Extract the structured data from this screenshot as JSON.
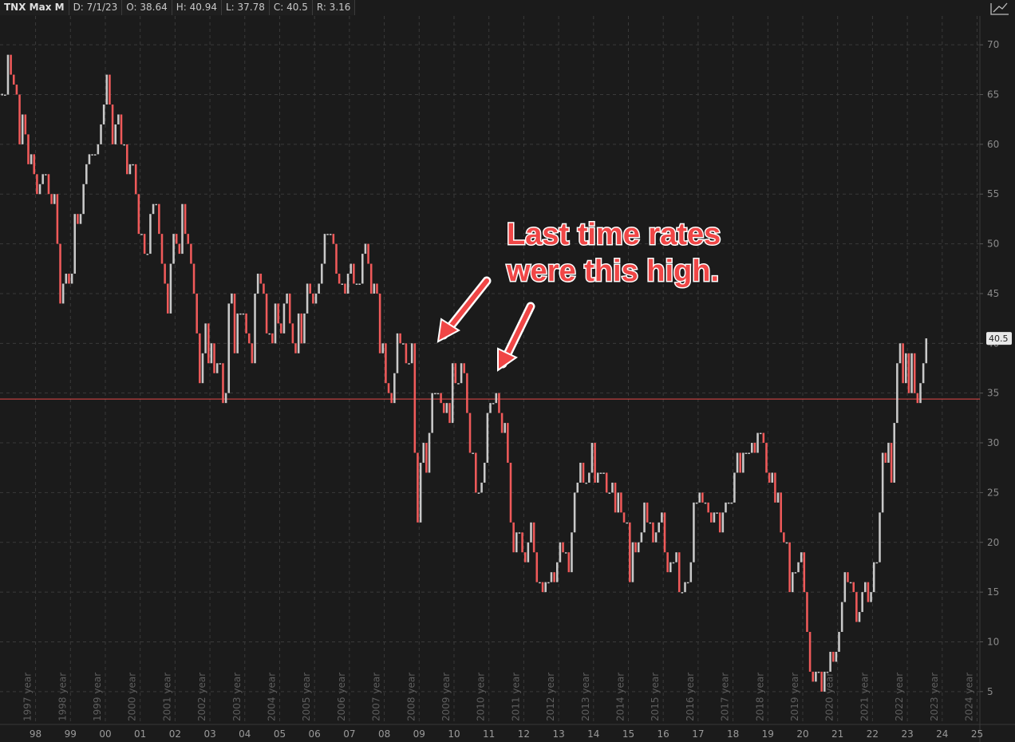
{
  "chart_data": {
    "type": "candlestick",
    "header": [
      "TNX Max M",
      "D: 7/1/23",
      "O: 38.64",
      "H: 40.94",
      "L: 37.78",
      "C: 40.5",
      "R: 3.16"
    ],
    "annotation": [
      "Last time rates",
      "were this high."
    ],
    "up_color": "#c9c9c9",
    "down_color": "#f05a5a",
    "hline": 34.4,
    "hline_color": "#e84a4a",
    "grid": true,
    "ylim": [
      1.7,
      72.9
    ],
    "yticks": [
      5,
      10,
      15,
      20,
      25,
      30,
      35,
      40,
      45,
      50,
      55,
      60,
      65,
      70
    ],
    "xlim": [
      1996.98,
      2025.08
    ],
    "xticks": [
      {
        "value": 1998,
        "label": "98"
      },
      {
        "value": 1999,
        "label": "99"
      },
      {
        "value": 2000,
        "label": "00"
      },
      {
        "value": 2001,
        "label": "01"
      },
      {
        "value": 2002,
        "label": "02"
      },
      {
        "value": 2003,
        "label": "03"
      },
      {
        "value": 2004,
        "label": "04"
      },
      {
        "value": 2005,
        "label": "05"
      },
      {
        "value": 2006,
        "label": "06"
      },
      {
        "value": 2007,
        "label": "07"
      },
      {
        "value": 2008,
        "label": "08"
      },
      {
        "value": 2009,
        "label": "09"
      },
      {
        "value": 2010,
        "label": "10"
      },
      {
        "value": 2011,
        "label": "11"
      },
      {
        "value": 2012,
        "label": "12"
      },
      {
        "value": 2013,
        "label": "13"
      },
      {
        "value": 2014,
        "label": "14"
      },
      {
        "value": 2015,
        "label": "15"
      },
      {
        "value": 2016,
        "label": "16"
      },
      {
        "value": 2017,
        "label": "17"
      },
      {
        "value": 2018,
        "label": "18"
      },
      {
        "value": 2019,
        "label": "19"
      },
      {
        "value": 2020,
        "label": "20"
      },
      {
        "value": 2021,
        "label": "21"
      },
      {
        "value": 2022,
        "label": "22"
      },
      {
        "value": 2023,
        "label": "23"
      },
      {
        "value": 2024,
        "label": "24"
      },
      {
        "value": 2025,
        "label": "25"
      }
    ],
    "year_labels": [
      "1997 year",
      "1998 year",
      "1999 year",
      "2000 year",
      "2001 year",
      "2002 year",
      "2003 year",
      "2004 year",
      "2005 year",
      "2006 year",
      "2007 year",
      "2008 year",
      "2009 year",
      "2010 year",
      "2011 year",
      "2012 year",
      "2013 year",
      "2014 year",
      "2015 year",
      "2016 year",
      "2017 year",
      "2018 year",
      "2019 year",
      "2020 year",
      "2021 year",
      "2022 year",
      "2023 year",
      "2024 year"
    ],
    "series": [
      {
        "name": "TNX",
        "values": [
          65,
          65,
          69,
          67,
          66,
          65,
          60,
          63,
          61,
          58,
          59,
          57,
          55,
          56,
          57,
          57,
          55,
          54,
          55,
          50,
          44,
          46,
          47,
          46,
          47,
          53,
          52,
          53,
          56,
          58,
          59,
          59,
          59,
          60,
          62,
          64,
          67,
          64,
          60,
          62,
          63,
          60,
          60,
          57,
          58,
          58,
          55,
          51,
          51,
          49,
          49,
          53,
          54,
          54,
          51,
          48,
          46,
          43,
          48,
          51,
          50,
          49,
          54,
          51,
          50,
          48,
          45,
          41,
          36,
          39,
          42,
          38,
          40,
          37,
          38,
          38,
          34,
          35,
          44,
          45,
          39,
          43,
          43,
          43,
          41,
          40,
          38,
          45,
          47,
          46,
          45,
          41,
          41,
          40,
          44,
          42,
          41,
          44,
          45,
          42,
          40,
          39,
          43,
          40,
          43,
          46,
          45,
          44,
          45,
          46,
          48,
          51,
          51,
          51,
          50,
          47,
          46,
          46,
          45,
          47,
          48,
          46,
          46,
          46,
          49,
          50,
          48,
          45,
          46,
          45,
          39,
          40,
          36,
          35,
          34,
          37,
          41,
          40,
          40,
          38,
          38,
          40,
          29,
          22,
          28,
          30,
          27,
          31,
          35,
          35,
          35,
          34,
          33,
          34,
          32,
          38,
          36,
          36,
          38,
          37,
          33,
          29,
          29,
          25,
          25,
          26,
          28,
          33,
          34,
          34,
          35,
          33,
          31,
          32,
          28,
          22,
          19,
          21,
          21,
          19,
          18,
          20,
          22,
          19,
          16,
          16,
          15,
          16,
          16,
          17,
          16,
          18,
          20,
          19,
          19,
          17,
          21,
          25,
          26,
          28,
          26,
          26,
          27,
          30,
          26,
          27,
          27,
          27,
          25,
          25,
          26,
          23,
          25,
          23,
          22,
          22,
          16,
          20,
          19,
          20,
          21,
          24,
          22,
          22,
          20,
          21,
          22,
          23,
          19,
          17,
          18,
          18,
          19,
          15,
          15,
          16,
          16,
          18,
          24,
          24,
          25,
          24,
          24,
          23,
          22,
          23,
          23,
          21,
          23,
          24,
          24,
          24,
          27,
          29,
          27,
          29,
          29,
          29,
          30,
          29,
          31,
          31,
          30,
          27,
          26,
          27,
          24,
          25,
          21,
          20,
          20,
          15,
          17,
          17,
          18,
          19,
          15,
          11,
          7,
          6,
          7,
          7,
          5,
          7,
          7,
          9,
          8,
          9,
          11,
          14,
          17,
          16,
          16,
          15,
          12,
          13,
          15,
          16,
          14,
          15,
          18,
          18,
          23,
          29,
          28,
          30,
          26,
          32,
          38,
          40,
          36,
          39,
          35,
          39,
          35,
          34,
          36,
          38,
          40.5
        ]
      }
    ]
  }
}
